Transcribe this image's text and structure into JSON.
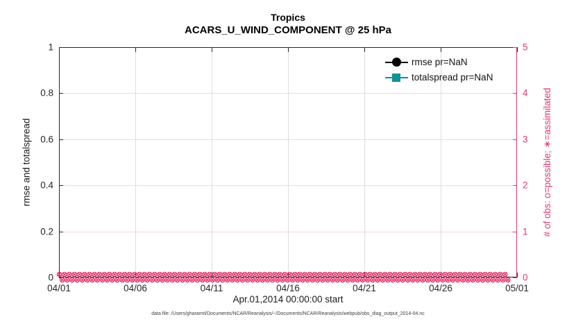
{
  "figure": {
    "title_line1": "Tropics",
    "title_line2": "ACARS_U_WIND_COMPONENT @ 25 hPa",
    "xlabel": "Apr.01,2014 00:00:00 start",
    "footer": "data file: /Users/gharamti/Documents/NCAR/Reanalysis/~/Documents/NCAR/Reanalysis/webpub/obs_diag_output_2014-04.nc"
  },
  "chart_data": {
    "type": "line",
    "title": "Tropics",
    "subtitle": "ACARS_U_WIND_COMPONENT @ 25 hPa",
    "xlabel": "Apr.01,2014 00:00:00 start",
    "x_axis": {
      "tick_labels": [
        "04/01",
        "04/06",
        "04/11",
        "04/16",
        "04/21",
        "04/26",
        "05/01"
      ],
      "grid_color": "#dcdcdc"
    },
    "left_axis": {
      "label": "rmse and totalspread",
      "tick_labels": [
        "0",
        "0.2",
        "0.4",
        "0.6",
        "0.8",
        "1"
      ],
      "lim": [
        0,
        1
      ],
      "color": "#262626"
    },
    "right_axis": {
      "label": "# of obs: o=possible; ∗=assimilated",
      "tick_labels": [
        "0",
        "1",
        "2",
        "3",
        "4",
        "5"
      ],
      "lim": [
        0,
        5
      ],
      "color": "#e0376e",
      "grid_color": "#f5d4de"
    },
    "series": [
      {
        "name": "rmse pr=NaN",
        "axis": "left",
        "color": "#000000",
        "marker": "circle",
        "values": "NaN (nothing plotted)"
      },
      {
        "name": "totalspread pr=NaN",
        "axis": "left",
        "color": "#0e9292",
        "marker": "square",
        "values": "NaN (nothing plotted)"
      },
      {
        "name": "# of obs possible (o)",
        "axis": "right",
        "color": "#e0376e",
        "marker": "o",
        "constant_value": 0
      },
      {
        "name": "# of obs assimilated (∗)",
        "axis": "right",
        "color": "#e0376e",
        "marker": "∗",
        "constant_value": 0
      }
    ],
    "obs_band": {
      "glyph": "⊗",
      "rows": 2,
      "per_row": 90,
      "color": "#e0376e",
      "y_value": 0
    },
    "grid": true,
    "legend_position": "top-right-inside"
  },
  "legend": {
    "items": [
      {
        "label": "rmse pr=NaN",
        "color": "#000000",
        "marker": "circle"
      },
      {
        "label": "totalspread pr=NaN",
        "color": "#0e9292",
        "marker": "square"
      }
    ]
  }
}
